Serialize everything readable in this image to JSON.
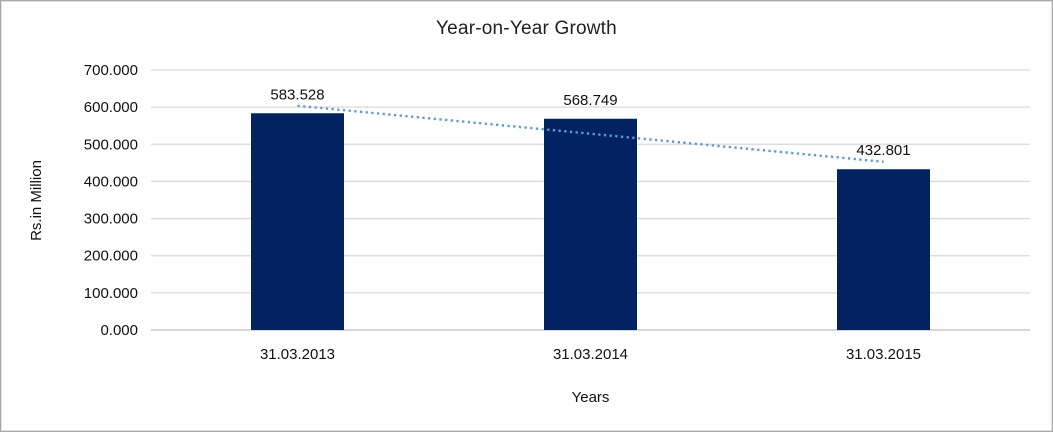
{
  "chart": {
    "title": "Year-on-Year Growth",
    "y_axis_title": "Rs.in Million",
    "x_axis_title": "Years",
    "colors": {
      "bar": "#032262",
      "trendline": "#5B9BD5",
      "gridline": "#D9D9D9",
      "baseline": "#BDBDBD",
      "text": "#111111"
    }
  },
  "chart_data": {
    "type": "bar",
    "title": "Year-on-Year Growth",
    "xlabel": "Years",
    "ylabel": "Rs.in Million",
    "categories": [
      "31.03.2013",
      "31.03.2014",
      "31.03.2015"
    ],
    "values": [
      583.528,
      568.749,
      432.801
    ],
    "data_labels": [
      "583.528",
      "568.749",
      "432.801"
    ],
    "y_ticks": [
      "0.000",
      "100.000",
      "200.000",
      "300.000",
      "400.000",
      "500.000",
      "600.000",
      "700.000"
    ],
    "ylim": [
      0,
      700
    ],
    "grid": true,
    "legend": "none",
    "trendline": {
      "type": "linear",
      "style": "dotted",
      "color": "#5B9BD5"
    }
  }
}
